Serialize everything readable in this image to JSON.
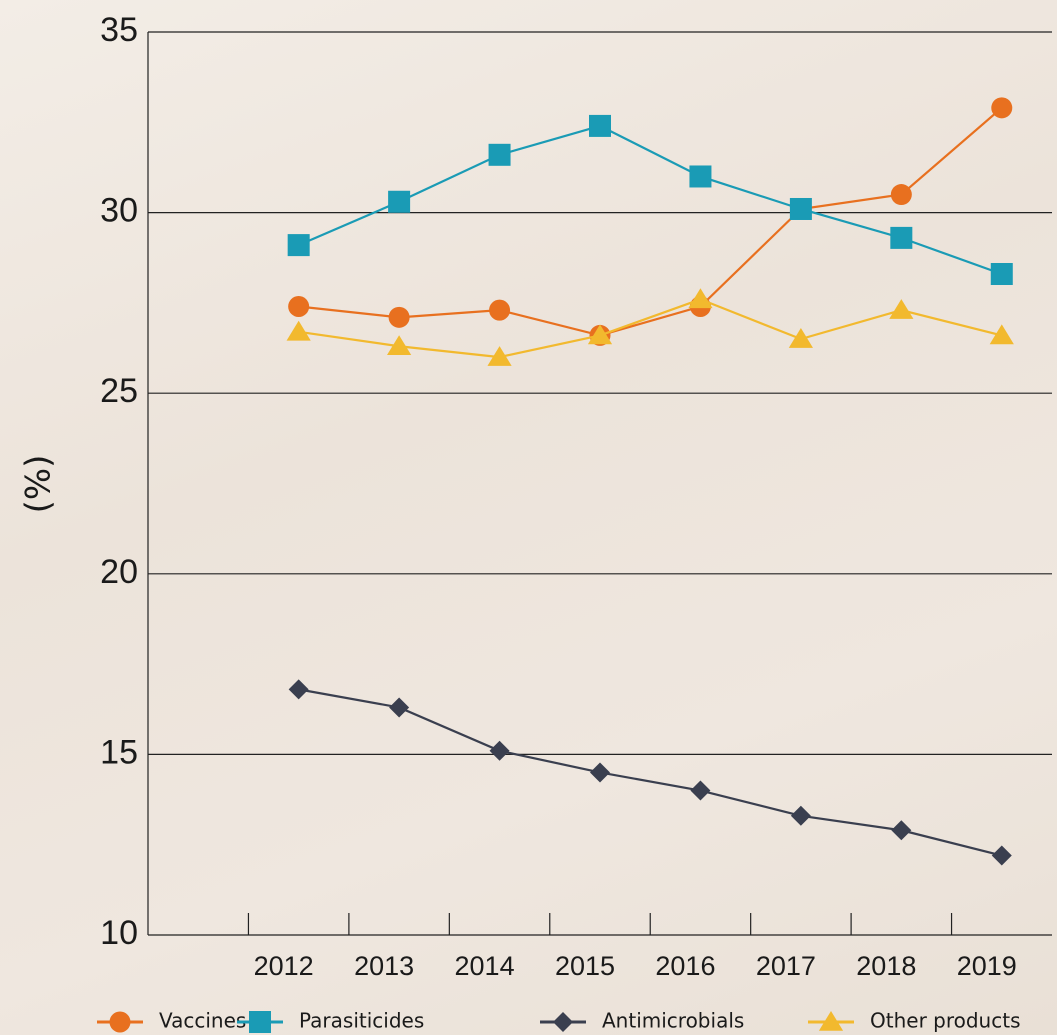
{
  "chart_data": {
    "type": "line",
    "y_label": "(%)",
    "categories": [
      null,
      "2012",
      "2013",
      "2014",
      "2015",
      "2016",
      "2017",
      "2018",
      "2019"
    ],
    "series": [
      {
        "name": "Vaccines",
        "color": "#e8701f",
        "marker": "circle",
        "values": [
          null,
          27.4,
          27.1,
          27.3,
          26.6,
          27.4,
          30.1,
          30.5,
          32.9
        ]
      },
      {
        "name": "Parasiticides",
        "color": "#1a9bb5",
        "marker": "square",
        "values": [
          null,
          29.1,
          30.3,
          31.6,
          32.4,
          31.0,
          30.1,
          29.3,
          28.3
        ]
      },
      {
        "name": "Antimicrobials",
        "color": "#3a3f4f",
        "marker": "diamond",
        "values": [
          null,
          16.8,
          16.3,
          15.1,
          14.5,
          14.0,
          13.3,
          12.9,
          12.2
        ]
      },
      {
        "name": "Other products",
        "color": "#f2b92e",
        "marker": "triangle",
        "values": [
          null,
          26.7,
          26.3,
          26.0,
          26.6,
          27.6,
          26.5,
          27.3,
          26.6
        ]
      }
    ],
    "ylim": [
      10,
      35
    ],
    "yticks": [
      10,
      15,
      20,
      25,
      30,
      35
    ],
    "grid": true
  }
}
